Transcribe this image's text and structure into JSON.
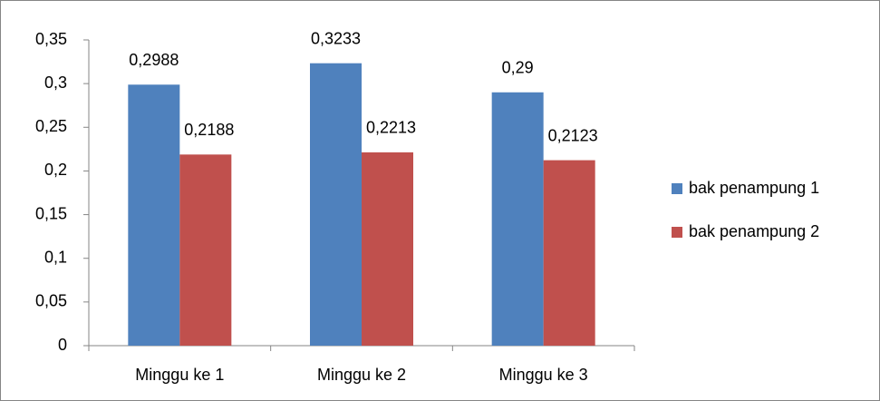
{
  "chart_data": {
    "type": "bar",
    "categories": [
      "Minggu ke 1",
      "Minggu ke 2",
      "Minggu ke 3"
    ],
    "series": [
      {
        "name": "bak penampung 1",
        "color": "#4f81bd",
        "values": [
          0.2988,
          0.3233,
          0.29
        ],
        "value_labels": [
          "0,2988",
          "0,3233",
          "0,29"
        ]
      },
      {
        "name": "bak penampung 2",
        "color": "#c0504d",
        "values": [
          0.2188,
          0.2213,
          0.2123
        ],
        "value_labels": [
          "0,2188",
          "0,2213",
          "0,2123"
        ]
      }
    ],
    "ylim": [
      0,
      0.35
    ],
    "yticks": [
      0,
      {
        "value": 0.05,
        "label": "0,05"
      },
      {
        "value": 0.1,
        "label": "0,1"
      },
      {
        "value": 0.15,
        "label": "0,15"
      },
      {
        "value": 0.2,
        "label": "0,2"
      },
      {
        "value": 0.25,
        "label": "0,25"
      },
      {
        "value": 0.3,
        "label": "0,3"
      },
      {
        "value": 0.35,
        "label": "0,35"
      }
    ],
    "grid": false,
    "legend": "right"
  }
}
